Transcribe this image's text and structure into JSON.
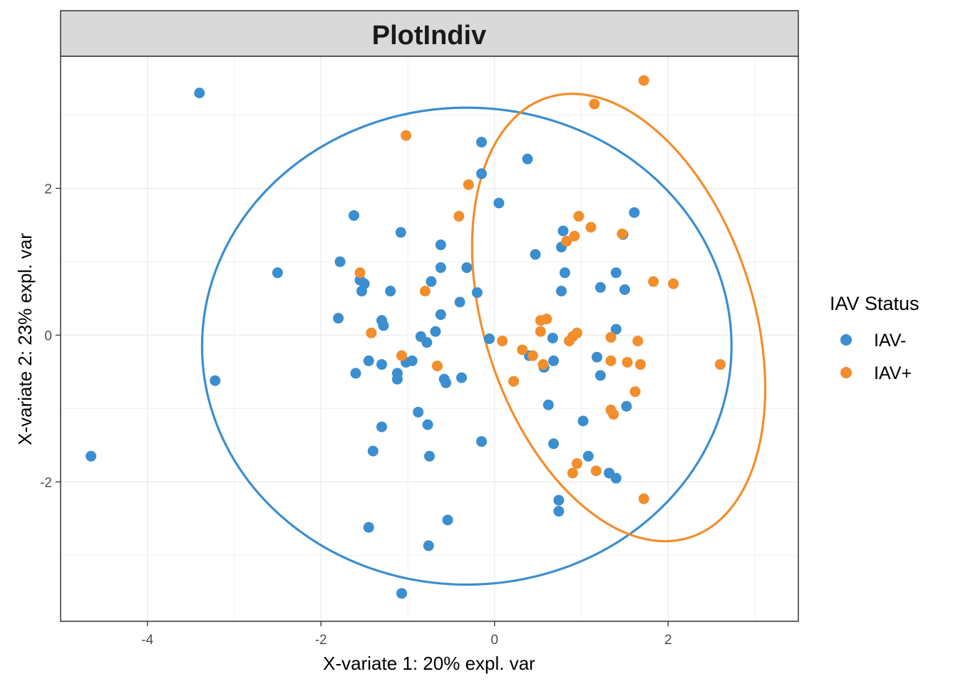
{
  "chart_data": {
    "type": "scatter",
    "title": "PlotIndiv",
    "xlabel": "X-variate 1: 20% expl. var",
    "ylabel": "X-variate 2: 23% expl. var",
    "xlim": [
      -5.0,
      3.5
    ],
    "ylim": [
      -3.9,
      3.8
    ],
    "xticks": [
      -4,
      -2,
      0,
      2
    ],
    "yticks": [
      -2,
      0,
      2
    ],
    "grid": true,
    "legend": {
      "title": "IAV Status",
      "position": "right"
    },
    "series": [
      {
        "name": "IAV-",
        "color": "#3B8ED0",
        "ellipse": {
          "center": [
            -0.32,
            -0.15
          ],
          "rx": 3.05,
          "ry": 3.25
        },
        "points": [
          [
            -3.4,
            3.3
          ],
          [
            -4.65,
            -1.65
          ],
          [
            -3.22,
            -0.62
          ],
          [
            -2.5,
            0.85
          ],
          [
            -1.8,
            0.23
          ],
          [
            -1.78,
            1.0
          ],
          [
            -1.62,
            1.63
          ],
          [
            -1.6,
            -0.52
          ],
          [
            -1.55,
            0.75
          ],
          [
            -1.53,
            0.6
          ],
          [
            -1.5,
            0.7
          ],
          [
            -1.45,
            -0.35
          ],
          [
            -1.45,
            -2.62
          ],
          [
            -1.4,
            -1.58
          ],
          [
            -1.3,
            0.2
          ],
          [
            -1.28,
            0.13
          ],
          [
            -1.3,
            -0.4
          ],
          [
            -1.3,
            -1.25
          ],
          [
            -1.2,
            0.6
          ],
          [
            -1.12,
            -0.52
          ],
          [
            -1.12,
            -0.6
          ],
          [
            -1.08,
            1.4
          ],
          [
            -1.02,
            -0.37
          ],
          [
            -0.95,
            -0.35
          ],
          [
            -0.88,
            -1.05
          ],
          [
            -0.85,
            -0.02
          ],
          [
            -0.78,
            -0.1
          ],
          [
            -0.77,
            -1.22
          ],
          [
            -0.75,
            -1.65
          ],
          [
            -0.76,
            -2.87
          ],
          [
            -0.73,
            0.73
          ],
          [
            -0.68,
            0.05
          ],
          [
            -0.62,
            1.23
          ],
          [
            -0.62,
            0.92
          ],
          [
            -0.62,
            0.28
          ],
          [
            -0.58,
            -0.6
          ],
          [
            -0.56,
            -0.65
          ],
          [
            -0.54,
            -2.52
          ],
          [
            -0.4,
            0.45
          ],
          [
            -0.38,
            -0.58
          ],
          [
            -0.32,
            0.92
          ],
          [
            -0.2,
            0.58
          ],
          [
            -0.15,
            2.63
          ],
          [
            -0.15,
            2.2
          ],
          [
            -0.15,
            -1.45
          ],
          [
            -0.06,
            -0.05
          ],
          [
            0.05,
            1.8
          ],
          [
            0.38,
            2.4
          ],
          [
            0.4,
            -0.28
          ],
          [
            0.47,
            1.1
          ],
          [
            0.57,
            -0.44
          ],
          [
            0.62,
            -0.95
          ],
          [
            0.67,
            -0.04
          ],
          [
            0.68,
            -0.35
          ],
          [
            0.68,
            -1.48
          ],
          [
            0.74,
            -2.25
          ],
          [
            0.74,
            -2.4
          ],
          [
            0.77,
            1.2
          ],
          [
            0.77,
            0.6
          ],
          [
            0.79,
            1.42
          ],
          [
            0.81,
            0.85
          ],
          [
            1.02,
            -1.17
          ],
          [
            1.08,
            -1.65
          ],
          [
            1.18,
            -0.3
          ],
          [
            1.22,
            0.65
          ],
          [
            1.22,
            -0.55
          ],
          [
            1.32,
            -1.88
          ],
          [
            1.4,
            0.08
          ],
          [
            1.4,
            -1.95
          ],
          [
            1.4,
            0.85
          ],
          [
            1.48,
            1.37
          ],
          [
            1.5,
            0.62
          ],
          [
            1.52,
            -0.97
          ],
          [
            1.61,
            1.67
          ],
          [
            -1.07,
            -3.52
          ]
        ]
      },
      {
        "name": "IAV+",
        "color": "#F28E2B",
        "ellipse": {
          "center": [
            1.43,
            0.24
          ],
          "rx": 1.55,
          "ry": 3.15,
          "rotate": -18
        },
        "points": [
          [
            1.72,
            3.47
          ],
          [
            1.15,
            3.15
          ],
          [
            -1.02,
            2.72
          ],
          [
            -0.3,
            2.05
          ],
          [
            -0.41,
            1.62
          ],
          [
            0.97,
            1.62
          ],
          [
            1.11,
            1.47
          ],
          [
            1.47,
            1.38
          ],
          [
            0.92,
            1.35
          ],
          [
            0.83,
            1.28
          ],
          [
            1.83,
            0.73
          ],
          [
            2.06,
            0.7
          ],
          [
            -1.55,
            0.85
          ],
          [
            -0.8,
            0.6
          ],
          [
            0.53,
            0.2
          ],
          [
            0.6,
            0.22
          ],
          [
            0.53,
            0.05
          ],
          [
            -1.42,
            0.03
          ],
          [
            0.95,
            0.03
          ],
          [
            0.9,
            -0.02
          ],
          [
            0.86,
            -0.08
          ],
          [
            1.34,
            -0.03
          ],
          [
            1.65,
            -0.08
          ],
          [
            0.09,
            -0.08
          ],
          [
            0.32,
            -0.2
          ],
          [
            0.44,
            -0.28
          ],
          [
            -1.07,
            -0.28
          ],
          [
            -0.66,
            -0.42
          ],
          [
            0.56,
            -0.4
          ],
          [
            1.34,
            -0.35
          ],
          [
            1.53,
            -0.37
          ],
          [
            1.68,
            -0.4
          ],
          [
            2.6,
            -0.4
          ],
          [
            0.22,
            -0.63
          ],
          [
            1.62,
            -0.77
          ],
          [
            1.34,
            -1.02
          ],
          [
            1.37,
            -1.08
          ],
          [
            0.95,
            -1.75
          ],
          [
            0.9,
            -1.88
          ],
          [
            1.17,
            -1.85
          ],
          [
            1.72,
            -2.23
          ]
        ]
      }
    ]
  }
}
